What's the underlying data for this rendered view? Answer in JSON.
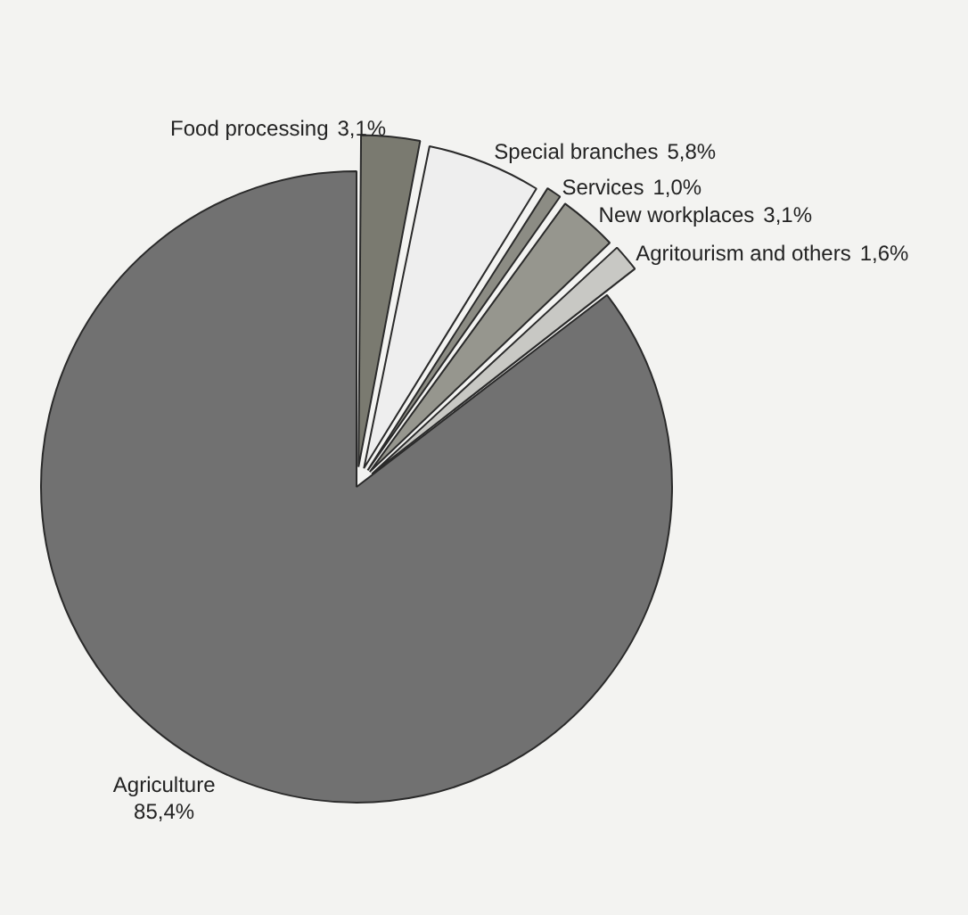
{
  "chart_data": {
    "type": "pie",
    "categories": [
      "Food processing",
      "Special branches",
      "Services",
      "New workplaces",
      "Agritourism and others",
      "Agriculture"
    ],
    "values": [
      3.1,
      5.8,
      1.0,
      3.1,
      1.6,
      85.4
    ],
    "value_labels": [
      "3,1%",
      "5,8%",
      "1,0%",
      "3,1%",
      "1,6%",
      "85,4%"
    ],
    "colors": [
      "#7a7a70",
      "#eeeeee",
      "#8c8c84",
      "#96968e",
      "#c8c8c4",
      "#717171"
    ],
    "legend": false
  }
}
